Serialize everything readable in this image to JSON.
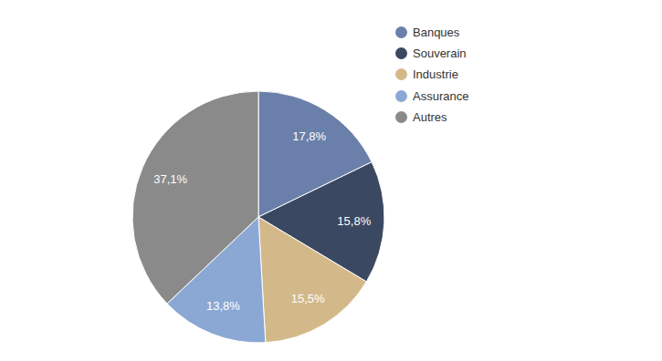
{
  "chart_data": {
    "type": "pie",
    "categories": [
      "Banques",
      "Souverain",
      "Industrie",
      "Assurance",
      "Autres"
    ],
    "values": [
      17.8,
      15.8,
      15.5,
      13.8,
      37.1
    ],
    "value_labels": [
      "17,8%",
      "15,8%",
      "15,5%",
      "13,8%",
      "37,1%"
    ],
    "colors": [
      "#6a80aa",
      "#3b4862",
      "#d3b98a",
      "#8ba8d4",
      "#8a8a8a"
    ],
    "data_labels": true,
    "legend": "top-right"
  }
}
